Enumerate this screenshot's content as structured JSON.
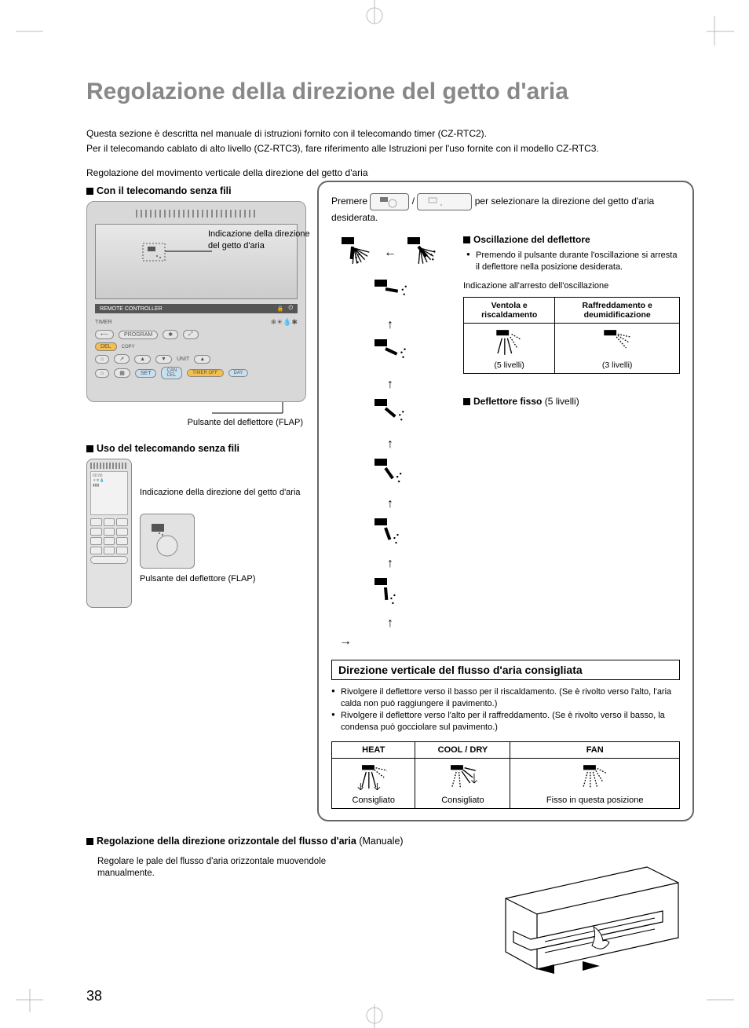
{
  "page_number": "38",
  "title": "Regolazione della direzione del getto d'aria",
  "intro": {
    "p1": "Questa sezione è descritta nel manuale di istruzioni fornito con il telecomando timer (CZ-RTC2).",
    "p2": "Per il telecomando cablato di alto livello (CZ-RTC3), fare riferimento alle Istruzioni per l'uso fornite con il modello CZ-RTC3.",
    "sub": "Regolazione del movimento verticale della direzione del getto d'aria"
  },
  "left": {
    "h_wired": "Con il telecomando senza fili",
    "callout_lcd": "Indicazione della direzione del getto d'aria",
    "callout_flap": "Pulsante del deflettore (FLAP)",
    "remote_bar": "REMOTE CONTROLLER",
    "timer": "TIMER",
    "program": "PROGRAM",
    "copy": "COPY",
    "del": "DEL",
    "unit": "UNIT",
    "set": "SET",
    "cancel": "CAN\nCEL",
    "timeroff": "TIMER OFF",
    "day": "DAY",
    "h_wireless": "Uso del telecomando senza fili",
    "callout_wireless_ind": "Indicazione della direzione del getto d'aria",
    "callout_wireless_flap": "Pulsante del deflettore (FLAP)"
  },
  "right": {
    "press_pre": "Premere",
    "press_sep": "/",
    "press_post": "per selezionare la direzione del getto d'aria desiderata.",
    "osc_h": "Oscillazione del deflettore",
    "osc_bullet": "Premendo il pulsante durante l'oscillazione si arresta il deflettore nella posizione desiderata.",
    "osc_caption": "Indicazione all'arresto dell'oscillazione",
    "tbl_h1": "Ventola e riscaldamento",
    "tbl_h2": "Raffreddamento e deumidificazione",
    "tbl_c1": "(5 livelli)",
    "tbl_c2": "(3 livelli)",
    "fixed_h": "Deflettore fisso",
    "fixed_levels": "(5 livelli)",
    "rec_title": "Direzione verticale del flusso d'aria consigliata",
    "rec_b1": "Rivolgere il deflettore verso il basso per il riscaldamento. (Se è rivolto verso l'alto, l'aria calda non può raggiungere il pavimento.)",
    "rec_b2": "Rivolgere il deflettore verso l'alto per il raffreddamento. (Se è rivolto verso il basso, la condensa può gocciolare sul pavimento.)",
    "rec_h1": "HEAT",
    "rec_h2": "COOL / DRY",
    "rec_h3": "FAN",
    "rec_c1": "Consigliato",
    "rec_c2": "Consigliato",
    "rec_c3": "Fisso in questa posizione"
  },
  "bottom": {
    "h": "Regolazione della direzione orizzontale del flusso d'aria",
    "h_suffix": "(Manuale)",
    "txt": "Regolare le pale del flusso d'aria orizzontale muovendole manualmente."
  },
  "colors": {
    "title": "#888888",
    "border": "#666666",
    "remote_bg": "#d8d8d8",
    "text": "#000000"
  },
  "flap_positions": [
    {
      "angle": 95,
      "spread": true
    },
    {
      "angle": 10
    },
    {
      "angle": 25
    },
    {
      "angle": 40
    },
    {
      "angle": 55
    },
    {
      "angle": 70
    },
    {
      "angle": 85
    }
  ]
}
